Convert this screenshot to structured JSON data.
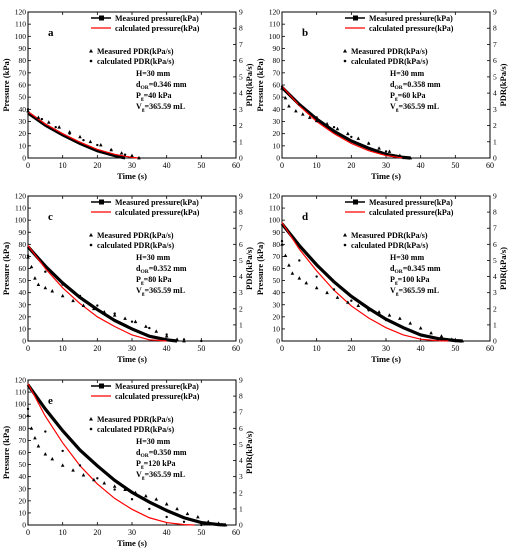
{
  "figure": {
    "common": {
      "xlabel": "Time (s)",
      "ylabel_left": "Pressure (kPa)",
      "ylabel_right": "PDR(kPa/s)",
      "xlim": [
        0,
        60
      ],
      "xticks": [
        0,
        10,
        20,
        30,
        40,
        50,
        60
      ],
      "ylim_left": [
        0,
        120
      ],
      "yticks_left": [
        0,
        10,
        20,
        30,
        40,
        50,
        60,
        70,
        80,
        90,
        100,
        110,
        120
      ],
      "ylim_right": [
        0,
        9
      ],
      "yticks_right": [
        0,
        1,
        2,
        3,
        4,
        5,
        6,
        7,
        8,
        9
      ],
      "colors": {
        "measured": "#000000",
        "calculated": "#ff0000"
      },
      "legend": {
        "measured_pressure": "Measured pressure(kPa)",
        "calculated_pressure": "calculated pressure(kPa)",
        "measured_pdr": "Measured PDR(kPa/s)",
        "calculated_pdr": "calculated PDR(kPa/s)"
      }
    }
  },
  "chart_data": [
    {
      "type": "line",
      "panel_letter": "a",
      "params": [
        "H=30 mm",
        "d_OR=0.346 mm",
        "P_g=40 kPa",
        "V_g=365.59 mL"
      ],
      "series": [
        {
          "name": "Measured pressure(kPa)",
          "axis": "left",
          "x": [
            0,
            5,
            10,
            15,
            20,
            25,
            28
          ],
          "y": [
            37,
            27,
            19,
            12,
            6,
            2,
            0
          ]
        },
        {
          "name": "calculated pressure(kPa)",
          "axis": "left",
          "x": [
            0,
            5,
            10,
            15,
            20,
            25,
            30,
            32
          ],
          "y": [
            38,
            28,
            20,
            13,
            7,
            3,
            0.5,
            0
          ]
        },
        {
          "name": "Measured PDR(kPa/s)",
          "axis": "right",
          "x": [
            0,
            3,
            6,
            9,
            12,
            15,
            18,
            21,
            24,
            27,
            30,
            32
          ],
          "y": [
            2.9,
            2.5,
            2.2,
            1.9,
            1.6,
            1.3,
            1.0,
            0.8,
            0.5,
            0.3,
            0.15,
            0
          ]
        },
        {
          "name": "calculated PDR(kPa/s)",
          "axis": "right",
          "x": [
            0,
            4,
            8,
            12,
            16,
            20,
            24,
            28,
            32
          ],
          "y": [
            3.0,
            2.4,
            1.9,
            1.5,
            1.1,
            0.8,
            0.5,
            0.2,
            0
          ]
        }
      ]
    },
    {
      "type": "line",
      "panel_letter": "b",
      "params": [
        "H=30 mm",
        "d_OR=0.358 mm",
        "P_g=60 kPa",
        "V_g=365.59 mL"
      ],
      "series": [
        {
          "name": "Measured pressure(kPa)",
          "axis": "left",
          "x": [
            0,
            5,
            10,
            15,
            20,
            25,
            30,
            35,
            37
          ],
          "y": [
            58,
            44,
            32,
            22,
            14,
            8,
            3,
            0.5,
            0
          ]
        },
        {
          "name": "calculated pressure(kPa)",
          "axis": "left",
          "x": [
            0,
            5,
            10,
            15,
            20,
            25,
            30,
            35
          ],
          "y": [
            59,
            43,
            30,
            20,
            12,
            6,
            2,
            0
          ]
        },
        {
          "name": "Measured PDR(kPa/s)",
          "axis": "right",
          "x": [
            0,
            1,
            2,
            4,
            6,
            8,
            10,
            13,
            16,
            19,
            22,
            25,
            28,
            31,
            34,
            37
          ],
          "y": [
            4.3,
            3.7,
            3.2,
            2.9,
            2.7,
            2.5,
            2.3,
            2.1,
            1.8,
            1.5,
            1.2,
            0.9,
            0.6,
            0.4,
            0.15,
            0
          ]
        },
        {
          "name": "calculated PDR(kPa/s)",
          "axis": "right",
          "x": [
            0,
            5,
            10,
            15,
            20,
            25,
            30,
            35
          ],
          "y": [
            4.4,
            3.3,
            2.5,
            1.9,
            1.3,
            0.9,
            0.4,
            0
          ]
        }
      ]
    },
    {
      "type": "line",
      "panel_letter": "c",
      "params": [
        "H=30 mm",
        "d_OR=0.352 mm",
        "P_g=80 kPa",
        "V_g=365.59 mL"
      ],
      "series": [
        {
          "name": "Measured pressure(kPa)",
          "axis": "left",
          "x": [
            0,
            5,
            10,
            15,
            20,
            25,
            30,
            35,
            40,
            43
          ],
          "y": [
            78,
            62,
            48,
            36,
            26,
            17,
            10,
            4,
            1,
            0
          ]
        },
        {
          "name": "calculated pressure(kPa)",
          "axis": "left",
          "x": [
            0,
            5,
            10,
            15,
            20,
            25,
            30,
            35,
            40
          ],
          "y": [
            79,
            60,
            44,
            31,
            20,
            12,
            5,
            1,
            0
          ]
        },
        {
          "name": "Measured PDR(kPa/s)",
          "axis": "right",
          "x": [
            0,
            1,
            2,
            3,
            5,
            7,
            10,
            13,
            16,
            19,
            22,
            25,
            28,
            31,
            34,
            37,
            40,
            43,
            45
          ],
          "y": [
            5.2,
            4.6,
            3.9,
            3.5,
            3.3,
            3.1,
            2.8,
            2.5,
            2.2,
            2.0,
            1.8,
            1.6,
            1.4,
            1.2,
            0.9,
            0.6,
            0.3,
            0.1,
            0
          ]
        },
        {
          "name": "calculated PDR(kPa/s)",
          "axis": "right",
          "x": [
            0,
            5,
            10,
            15,
            20,
            25,
            30,
            35,
            40,
            45,
            50
          ],
          "y": [
            5.3,
            4.3,
            3.5,
            2.8,
            2.2,
            1.7,
            1.2,
            0.8,
            0.4,
            0.1,
            0
          ]
        }
      ]
    },
    {
      "type": "line",
      "panel_letter": "d",
      "params": [
        "H=30 mm",
        "d_OR=0.345 mm",
        "P_g=100 kPa",
        "V_g=365.59 mL"
      ],
      "series": [
        {
          "name": "Measured pressure(kPa)",
          "axis": "left",
          "x": [
            0,
            5,
            10,
            15,
            20,
            25,
            30,
            35,
            40,
            45,
            50,
            52
          ],
          "y": [
            97,
            79,
            63,
            49,
            37,
            27,
            18,
            11,
            5,
            2,
            0.3,
            0
          ]
        },
        {
          "name": "calculated pressure(kPa)",
          "axis": "left",
          "x": [
            0,
            5,
            10,
            15,
            20,
            25,
            30,
            35,
            40,
            45,
            48
          ],
          "y": [
            98,
            76,
            58,
            42,
            29,
            19,
            11,
            5,
            1.5,
            0.2,
            0
          ]
        },
        {
          "name": "Measured PDR(kPa/s)",
          "axis": "right",
          "x": [
            0,
            1,
            2,
            3,
            5,
            7,
            10,
            13,
            16,
            19,
            22,
            25,
            28,
            31,
            34,
            37,
            40,
            43,
            46,
            49,
            52
          ],
          "y": [
            6.0,
            5.3,
            4.7,
            4.2,
            3.9,
            3.6,
            3.3,
            3.0,
            2.7,
            2.4,
            2.2,
            2.0,
            1.8,
            1.6,
            1.4,
            1.1,
            0.8,
            0.5,
            0.3,
            0.1,
            0
          ]
        },
        {
          "name": "calculated PDR(kPa/s)",
          "axis": "right",
          "x": [
            0,
            5,
            10,
            15,
            20,
            25,
            30,
            35,
            40,
            45,
            50
          ],
          "y": [
            6.2,
            5.0,
            4.0,
            3.2,
            2.5,
            1.9,
            1.3,
            0.8,
            0.4,
            0.1,
            0
          ]
        }
      ]
    },
    {
      "type": "line",
      "panel_letter": "e",
      "params": [
        "H=30 mm",
        "d_OR=0.350 mm",
        "P_g=120 kPa",
        "V_g=365.59 mL"
      ],
      "series": [
        {
          "name": "Measured pressure(kPa)",
          "axis": "left",
          "x": [
            0,
            5,
            10,
            15,
            20,
            25,
            30,
            35,
            40,
            45,
            50,
            55,
            57
          ],
          "y": [
            116,
            96,
            78,
            62,
            49,
            37,
            27,
            19,
            12,
            6,
            2,
            0.3,
            0
          ]
        },
        {
          "name": "calculated pressure(kPa)",
          "axis": "left",
          "x": [
            0,
            5,
            10,
            15,
            20,
            25,
            30,
            35,
            40,
            45,
            48
          ],
          "y": [
            117,
            90,
            68,
            49,
            34,
            22,
            13,
            6,
            2,
            0.3,
            0
          ]
        },
        {
          "name": "Measured PDR(kPa/s)",
          "axis": "right",
          "x": [
            0,
            1,
            2,
            3,
            5,
            7,
            10,
            13,
            16,
            19,
            22,
            25,
            28,
            31,
            34,
            37,
            40,
            43,
            46,
            49,
            52,
            55,
            57
          ],
          "y": [
            6.8,
            6.0,
            5.4,
            4.9,
            4.4,
            4.1,
            3.7,
            3.4,
            3.1,
            2.8,
            2.6,
            2.4,
            2.2,
            2.0,
            1.8,
            1.6,
            1.3,
            1.0,
            0.7,
            0.5,
            0.2,
            0.1,
            0
          ]
        },
        {
          "name": "calculated PDR(kPa/s)",
          "axis": "right",
          "x": [
            0,
            5,
            10,
            15,
            20,
            25,
            30,
            35,
            40,
            45,
            50
          ],
          "y": [
            7.2,
            5.8,
            4.6,
            3.7,
            2.9,
            2.2,
            1.6,
            1.0,
            0.5,
            0.2,
            0
          ]
        }
      ]
    }
  ]
}
